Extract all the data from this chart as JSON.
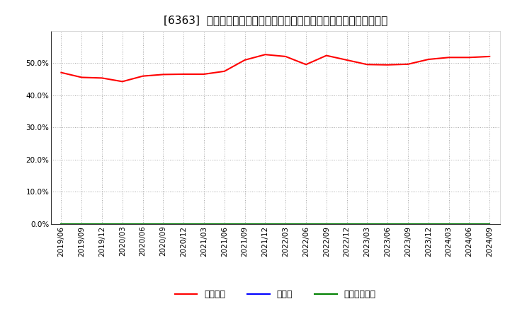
{
  "title": "[6363]  自己資本、のれん、繰延税金資産の総資産に対する比率の推移",
  "x_labels": [
    "2019/06",
    "2019/09",
    "2019/12",
    "2020/03",
    "2020/06",
    "2020/09",
    "2020/12",
    "2021/03",
    "2021/06",
    "2021/09",
    "2021/12",
    "2022/03",
    "2022/06",
    "2022/09",
    "2022/12",
    "2023/03",
    "2023/06",
    "2023/09",
    "2023/12",
    "2024/03",
    "2024/06",
    "2024/09"
  ],
  "jiko_shihon": [
    0.471,
    0.456,
    0.454,
    0.443,
    0.46,
    0.465,
    0.466,
    0.466,
    0.475,
    0.51,
    0.527,
    0.521,
    0.496,
    0.524,
    0.51,
    0.496,
    0.495,
    0.497,
    0.512,
    0.518,
    0.518,
    0.521
  ],
  "noren": [
    0,
    0,
    0,
    0,
    0,
    0,
    0,
    0,
    0,
    0,
    0,
    0,
    0,
    0,
    0,
    0,
    0,
    0,
    0,
    0,
    0,
    0
  ],
  "kurinobe": [
    0,
    0,
    0,
    0,
    0,
    0,
    0,
    0,
    0,
    0,
    0,
    0,
    0,
    0,
    0,
    0,
    0,
    0,
    0,
    0,
    0,
    0
  ],
  "jiko_color": "#ff0000",
  "noren_color": "#0000ff",
  "kurinobe_color": "#008000",
  "background_color": "#ffffff",
  "plot_bg_color": "#ffffff",
  "grid_color": "#aaaaaa",
  "ylim": [
    0.0,
    0.6
  ],
  "yticks": [
    0.0,
    0.1,
    0.2,
    0.3,
    0.4,
    0.5
  ],
  "legend_labels": [
    "自己資本",
    "のれん",
    "繰延税金資産"
  ],
  "title_fontsize": 11,
  "axis_fontsize": 7.5,
  "legend_fontsize": 9
}
